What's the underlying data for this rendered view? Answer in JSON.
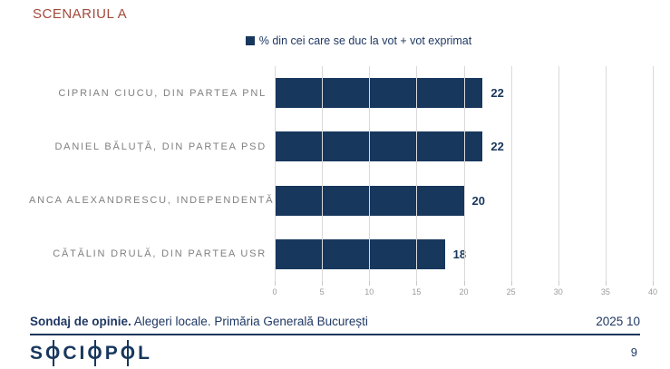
{
  "slide": {
    "title": "SCENARIUL A",
    "page_number": "9"
  },
  "legend": {
    "label": "% din cei care se duc la vot + vot exprimat"
  },
  "chart_data": {
    "type": "bar",
    "orientation": "horizontal",
    "title": "SCENARIUL A",
    "series_name": "% din cei care se duc la vot + vot exprimat",
    "categories": [
      "CIPRIAN CIUCU, DIN PARTEA PNL",
      "DANIEL BĂLUȚĂ, DIN PARTEA PSD",
      "ANCA ALEXANDRESCU, INDEPENDENTĂ",
      "CĂTĂLIN DRULĂ, DIN PARTEA USR"
    ],
    "values": [
      22,
      22,
      20,
      18
    ],
    "xlim": [
      0,
      40
    ],
    "xticks": [
      0,
      5,
      10,
      15,
      20,
      25,
      30,
      35,
      40
    ],
    "grid": true,
    "legend_position": "top-center",
    "bar_color": "#17375d",
    "value_labels_shown": true
  },
  "footer": {
    "left_bold": "Sondaj de opinie.",
    "left_rest": " Alegeri locale. Primăria Generală București",
    "date": "2025 10"
  },
  "brand": {
    "logo_text": "SOCIOPOL"
  },
  "colors": {
    "navy": "#17375d",
    "title_red": "#a2493a",
    "category_gray": "#808080",
    "tick_gray": "#9b9b9b",
    "grid_gray": "#d9d9d9"
  }
}
